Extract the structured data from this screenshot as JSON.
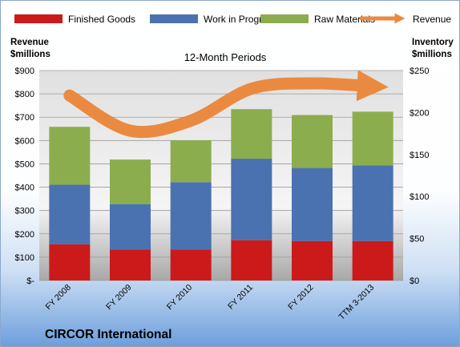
{
  "chart_data": {
    "type": "bar",
    "stacked": true,
    "title": "12-Month Periods",
    "company": "CIRCOR International",
    "left_axis_label": [
      "Revenue",
      "$millions"
    ],
    "right_axis_label": [
      "Inventory",
      "$millions"
    ],
    "categories": [
      "FY 2008",
      "FY 2009",
      "FY 2010",
      "FY 2011",
      "FY 2012",
      "TTM 3-2013"
    ],
    "left_ticks": [
      "$-",
      "$100",
      "$200",
      "$300",
      "$400",
      "$500",
      "$600",
      "$700",
      "$800",
      "$900"
    ],
    "right_ticks": [
      "$0",
      "$50",
      "$100",
      "$150",
      "$200",
      "$250"
    ],
    "ylim_left": [
      0,
      900
    ],
    "ylim_right": [
      0,
      250
    ],
    "grid": true,
    "legend_position": "top",
    "series": [
      {
        "name": "Finished Goods",
        "axis": "right",
        "color": "#cc1a1a",
        "values": [
          43,
          37,
          37,
          48,
          47,
          47
        ]
      },
      {
        "name": "Work in Progress",
        "axis": "right",
        "color": "#4a72b0",
        "values": [
          71,
          54,
          80,
          97,
          87,
          90
        ]
      },
      {
        "name": "Raw Materials",
        "axis": "right",
        "color": "#8cad4e",
        "values": [
          69,
          53,
          50,
          59,
          63,
          64
        ]
      },
      {
        "name": "Revenue",
        "axis": "left",
        "type": "line",
        "color": "#ea8a40",
        "values": [
          793,
          642,
          685,
          822,
          845,
          832
        ]
      }
    ]
  }
}
